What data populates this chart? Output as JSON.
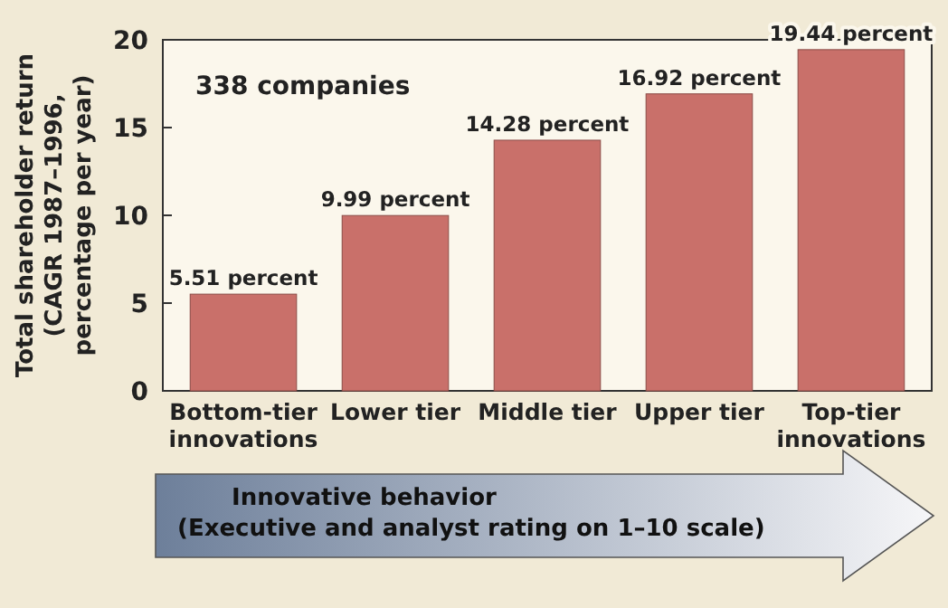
{
  "chart_data": {
    "type": "bar",
    "categories": [
      "Bottom-tier\ninnovations",
      "Lower tier",
      "Middle tier",
      "Upper tier",
      "Top-tier\ninnovations"
    ],
    "values": [
      5.51,
      9.99,
      14.28,
      16.92,
      19.44
    ],
    "value_labels": [
      "5.51 percent",
      "9.99 percent",
      "14.28 percent",
      "16.92 percent",
      "19.44 percent"
    ],
    "color": "#c9706a",
    "ylim": [
      0,
      20
    ],
    "yticks": [
      0,
      5,
      10,
      15,
      20
    ],
    "grid": false,
    "ylabel": "Total shareholder return\n(CAGR 1987–1996,\npercentage per year)",
    "xlabel": "Innovative behavior\n(Executive and analyst rating on 1–10 scale)",
    "annotations": [
      "338 companies"
    ]
  }
}
